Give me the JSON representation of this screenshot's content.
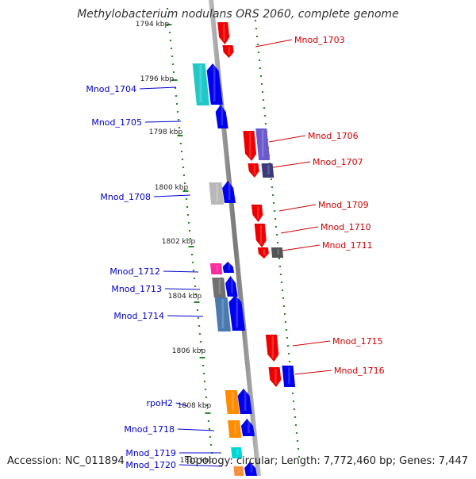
{
  "title": "Methylobacterium nodulans ORS 2060, complete genome",
  "footer": {
    "accession": "Accession: NC_011894",
    "summary": "Topology: circular; Length: 7,772,460 bp; Genes: 7,447"
  },
  "colors": {
    "forward_label": "#0000cc",
    "reverse_label": "#cc0000",
    "backbone": "#8c8c8c",
    "scale_dots": "#2a8a2a"
  },
  "ticks": [
    "1794 kbp",
    "1796 kbp",
    "1798 kbp",
    "1800 kbp",
    "1802 kbp",
    "1804 kbp",
    "1806 kbp",
    "1808 kbp",
    "1810 kbp"
  ],
  "left_labels": [
    "Mnod_1704",
    "Mnod_1705",
    "Mnod_1708",
    "Mnod_1712",
    "Mnod_1713",
    "Mnod_1714",
    "rpoH2",
    "Mnod_1718",
    "Mnod_1719",
    "Mnod_1720"
  ],
  "right_labels": [
    "Mnod_1703",
    "Mnod_1706",
    "Mnod_1707",
    "Mnod_1709",
    "Mnod_1710",
    "Mnod_1711",
    "Mnod_1715",
    "Mnod_1716"
  ]
}
